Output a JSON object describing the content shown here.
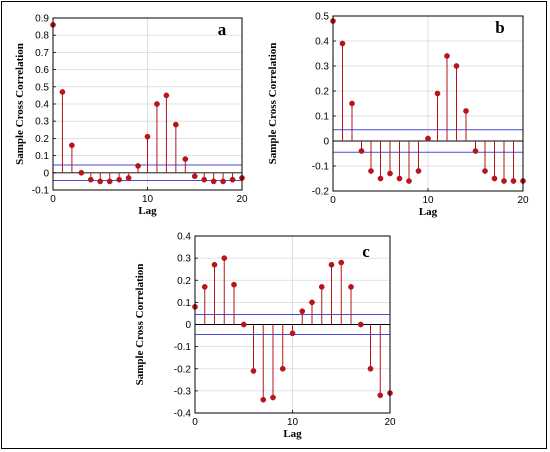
{
  "chart_data": [
    {
      "type": "stem",
      "panel_label": "a",
      "xlabel": "Lag",
      "ylabel": "Sample Cross Correlation",
      "xlim": [
        0,
        20
      ],
      "ylim": [
        -0.1,
        0.9
      ],
      "xticks": [
        0,
        10,
        20
      ],
      "yticks": [
        -0.1,
        0,
        0.1,
        0.2,
        0.3,
        0.4,
        0.5,
        0.6,
        0.7,
        0.8,
        0.9
      ],
      "ytick_labels": [
        "-0.1",
        "0",
        "0.1",
        "0.2",
        "0.3",
        "0.4",
        "0.5",
        "0.6",
        "0.7",
        "0.8",
        "0.9"
      ],
      "bounds": [
        0.045,
        -0.045
      ],
      "grid": true,
      "x": [
        0,
        1,
        2,
        3,
        4,
        5,
        6,
        7,
        8,
        9,
        10,
        11,
        12,
        13,
        14,
        15,
        16,
        17,
        18,
        19,
        20
      ],
      "values": [
        0.86,
        0.47,
        0.16,
        0.0,
        -0.04,
        -0.05,
        -0.05,
        -0.04,
        -0.03,
        0.04,
        0.21,
        0.4,
        0.45,
        0.28,
        0.08,
        -0.02,
        -0.04,
        -0.05,
        -0.05,
        -0.04,
        -0.03
      ]
    },
    {
      "type": "stem",
      "panel_label": "b",
      "xlabel": "Lag",
      "ylabel": "Sample Cross Correlation",
      "xlim": [
        0,
        20
      ],
      "ylim": [
        -0.2,
        0.5
      ],
      "xticks": [
        0,
        10,
        20
      ],
      "yticks": [
        -0.2,
        -0.1,
        0,
        0.1,
        0.2,
        0.3,
        0.4,
        0.5
      ],
      "ytick_labels": [
        "-0.2",
        "-0.1",
        "0",
        "0.1",
        "0.2",
        "0.3",
        "0.4",
        "0.5"
      ],
      "bounds": [
        0.045,
        -0.045
      ],
      "grid": true,
      "x": [
        0,
        1,
        2,
        3,
        4,
        5,
        6,
        7,
        8,
        9,
        10,
        11,
        12,
        13,
        14,
        15,
        16,
        17,
        18,
        19,
        20
      ],
      "values": [
        0.48,
        0.39,
        0.15,
        -0.04,
        -0.12,
        -0.15,
        -0.13,
        -0.15,
        -0.16,
        -0.12,
        0.01,
        0.19,
        0.34,
        0.3,
        0.12,
        -0.04,
        -0.12,
        -0.15,
        -0.16,
        -0.16,
        -0.16
      ]
    },
    {
      "type": "stem",
      "panel_label": "c",
      "xlabel": "Lag",
      "ylabel": "Sample Cross Correlation",
      "xlim": [
        0,
        20
      ],
      "ylim": [
        -0.4,
        0.4
      ],
      "xticks": [
        0,
        10,
        20
      ],
      "yticks": [
        -0.4,
        -0.3,
        -0.2,
        -0.1,
        0,
        0.1,
        0.2,
        0.3,
        0.4
      ],
      "ytick_labels": [
        "-0.4",
        "-0.3",
        "-0.2",
        "-0.1",
        "0",
        "0.1",
        "0.2",
        "0.3",
        "0.4"
      ],
      "bounds": [
        0.045,
        -0.045
      ],
      "grid": true,
      "x": [
        0,
        1,
        2,
        3,
        4,
        5,
        6,
        7,
        8,
        9,
        10,
        11,
        12,
        13,
        14,
        15,
        16,
        17,
        18,
        19,
        20
      ],
      "values": [
        0.08,
        0.17,
        0.27,
        0.3,
        0.18,
        0.0,
        -0.21,
        -0.34,
        -0.33,
        -0.2,
        -0.04,
        0.06,
        0.1,
        0.17,
        0.27,
        0.28,
        0.17,
        0.0,
        -0.2,
        -0.32,
        -0.31
      ]
    }
  ],
  "colors": {
    "stem": "#b5151b",
    "bound": "#4a4ad6",
    "zero": "#000000",
    "grid": "#d9d9d9"
  }
}
